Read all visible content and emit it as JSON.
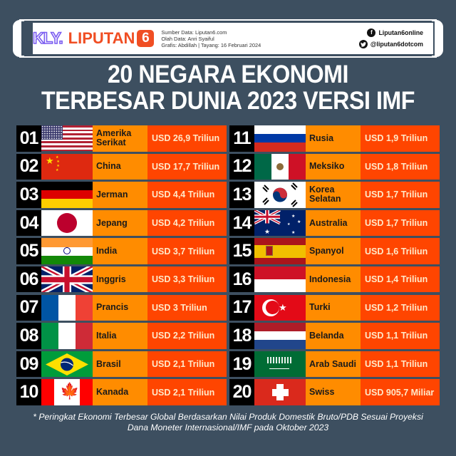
{
  "header": {
    "logo_kly": "KLY.",
    "logo_liputan": "LIPUTAN",
    "logo_six": "6",
    "credits": [
      "Sumber Data: Liputan6.com",
      "Olah Data: Anri Syaiful",
      "Grafis: Abdillah | Tayang: 16 Februari 2024"
    ],
    "socials": [
      {
        "icon": "facebook-icon",
        "glyph": "f",
        "handle": "Liputan6online"
      },
      {
        "icon": "twitter-icon",
        "glyph": "✓",
        "handle": "@liputan6dotcom"
      }
    ]
  },
  "title": {
    "line1": "20 NEGARA EKONOMI",
    "line2": "TERBESAR DUNIA 2023 VERSI IMF"
  },
  "colors": {
    "background": "#3d4f60",
    "rank_bg": "#000000",
    "name_bg": "#ff8c00",
    "value_bg": "#ff4500",
    "value_text": "#ffe9c9"
  },
  "rankings": [
    {
      "rank": "01",
      "country": "Amerika Serikat",
      "flag": "usa",
      "gdp": "USD 26,9 Triliun"
    },
    {
      "rank": "02",
      "country": "China",
      "flag": "china",
      "gdp": "USD 17,7 Triliun"
    },
    {
      "rank": "03",
      "country": "Jerman",
      "flag": "germany",
      "gdp": "USD 4,4 Triliun"
    },
    {
      "rank": "04",
      "country": "Jepang",
      "flag": "japan",
      "gdp": "USD 4,2 Triliun"
    },
    {
      "rank": "05",
      "country": "India",
      "flag": "india",
      "gdp": "USD 3,7 Triliun"
    },
    {
      "rank": "06",
      "country": "Inggris",
      "flag": "uk",
      "gdp": "USD 3,3 Triliun"
    },
    {
      "rank": "07",
      "country": "Prancis",
      "flag": "france",
      "gdp": "USD 3 Triliun"
    },
    {
      "rank": "08",
      "country": "Italia",
      "flag": "italy",
      "gdp": "USD 2,2 Triliun"
    },
    {
      "rank": "09",
      "country": "Brasil",
      "flag": "brazil",
      "gdp": "USD 2,1 Triliun"
    },
    {
      "rank": "10",
      "country": "Kanada",
      "flag": "canada",
      "gdp": "USD 2,1 Triliun"
    },
    {
      "rank": "11",
      "country": "Rusia",
      "flag": "russia",
      "gdp": "USD 1,9 Triliun"
    },
    {
      "rank": "12",
      "country": "Meksiko",
      "flag": "mexico",
      "gdp": "USD 1,8 Triliun"
    },
    {
      "rank": "13",
      "country": "Korea Selatan",
      "flag": "south-korea",
      "gdp": "USD 1,7 Triliun"
    },
    {
      "rank": "14",
      "country": "Australia",
      "flag": "australia",
      "gdp": "USD 1,7 Triliun"
    },
    {
      "rank": "15",
      "country": "Spanyol",
      "flag": "spain",
      "gdp": "USD 1,6 Triliun"
    },
    {
      "rank": "16",
      "country": "Indonesia",
      "flag": "indonesia",
      "gdp": "USD 1,4 Triliun"
    },
    {
      "rank": "17",
      "country": "Turki",
      "flag": "turkey",
      "gdp": "USD 1,2 Triliun"
    },
    {
      "rank": "18",
      "country": "Belanda",
      "flag": "netherlands",
      "gdp": "USD 1,1 Triliun"
    },
    {
      "rank": "19",
      "country": "Arab Saudi",
      "flag": "saudi-arabia",
      "gdp": "USD 1,1 Triliun"
    },
    {
      "rank": "20",
      "country": "Swiss",
      "flag": "switzerland",
      "gdp": "USD 905,7 Miliar"
    }
  ],
  "footnote": {
    "line1": "* Peringkat Ekonomi Terbesar Global Berdasarkan Nilai Produk Domestik Bruto/PDB Sesuai Proyeksi",
    "line2": "Dana Moneter Internasional/IMF pada Oktober 2023"
  }
}
